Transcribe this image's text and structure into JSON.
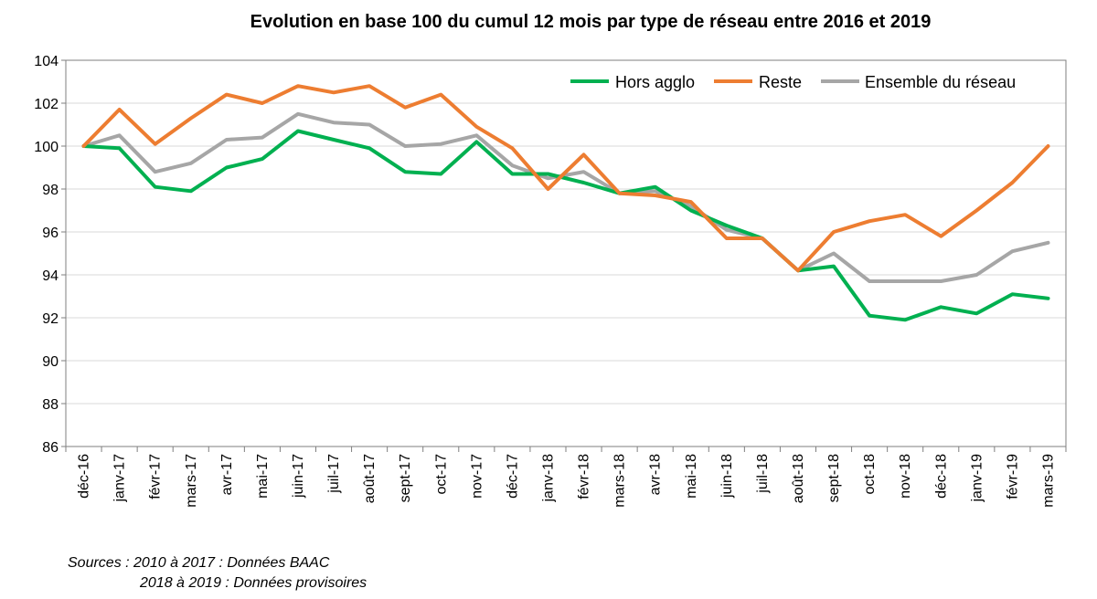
{
  "chart_data": {
    "type": "line",
    "title": "Evolution en base 100 du cumul 12 mois par type de réseau entre 2016 et 2019",
    "categories": [
      "déc-16",
      "janv-17",
      "févr-17",
      "mars-17",
      "avr-17",
      "mai-17",
      "juin-17",
      "juil-17",
      "août-17",
      "sept-17",
      "oct-17",
      "nov-17",
      "déc-17",
      "janv-18",
      "févr-18",
      "mars-18",
      "avr-18",
      "mai-18",
      "juin-18",
      "juil-18",
      "août-18",
      "sept-18",
      "oct-18",
      "nov-18",
      "déc-18",
      "janv-19",
      "févr-19",
      "mars-19"
    ],
    "ylim": [
      86,
      104
    ],
    "yticks": [
      86,
      88,
      90,
      92,
      94,
      96,
      98,
      100,
      102,
      104
    ],
    "grid": true,
    "legend_position": "top-right",
    "series": [
      {
        "name": "Hors agglo",
        "color": "#00b050",
        "values": [
          100.0,
          99.9,
          98.1,
          97.9,
          99.0,
          99.4,
          100.7,
          100.3,
          99.9,
          98.8,
          98.7,
          100.2,
          98.7,
          98.7,
          98.3,
          97.8,
          98.1,
          97.0,
          96.3,
          95.7,
          94.2,
          94.4,
          92.1,
          91.9,
          92.5,
          92.2,
          93.1,
          92.9
        ]
      },
      {
        "name": "Reste",
        "color": "#ed7d31",
        "values": [
          100.0,
          101.7,
          100.1,
          101.3,
          102.4,
          102.0,
          102.8,
          102.5,
          102.8,
          101.8,
          102.4,
          100.9,
          99.9,
          98.0,
          99.6,
          97.8,
          97.7,
          97.4,
          95.7,
          95.7,
          94.2,
          96.0,
          96.5,
          96.8,
          95.8,
          97.0,
          98.3,
          100.0
        ]
      },
      {
        "name": "Ensemble du réseau",
        "color": "#a6a6a6",
        "values": [
          100.0,
          100.5,
          98.8,
          99.2,
          100.3,
          100.4,
          101.5,
          101.1,
          101.0,
          100.0,
          100.1,
          100.5,
          99.1,
          98.5,
          98.8,
          97.8,
          97.9,
          97.2,
          96.1,
          95.7,
          94.2,
          95.0,
          93.7,
          93.7,
          93.7,
          94.0,
          95.1,
          95.5
        ]
      }
    ]
  },
  "sources": {
    "line1": "Sources : 2010 à 2017 : Données BAAC",
    "line2": "2018 à 2019 : Données provisoires"
  }
}
